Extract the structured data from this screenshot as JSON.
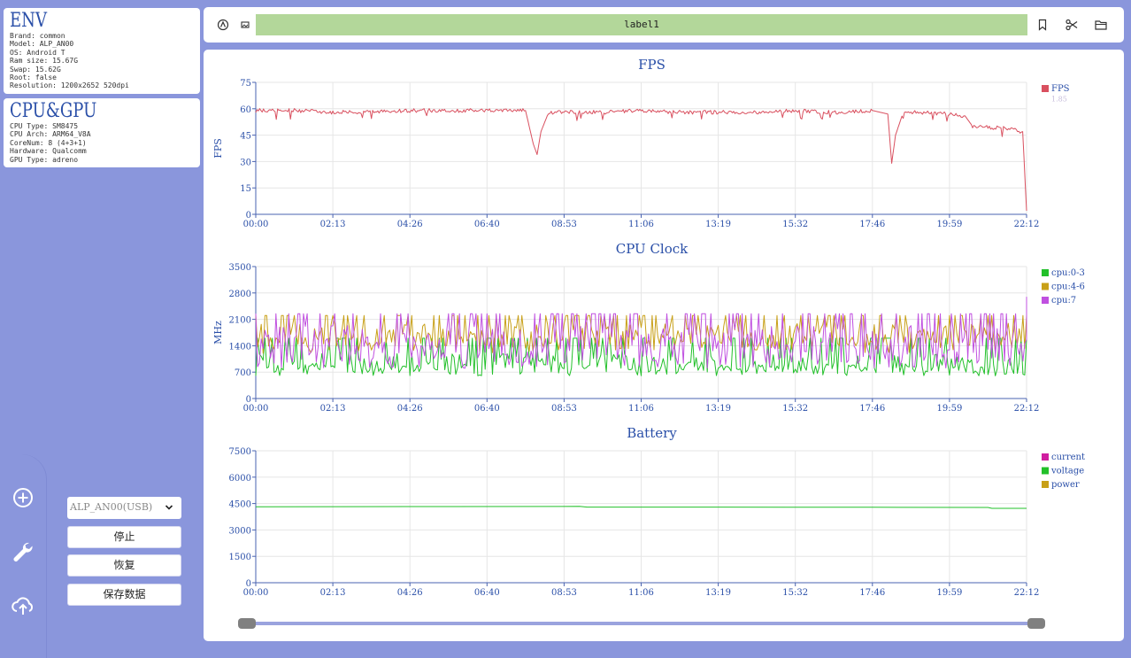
{
  "env": {
    "title": "ENV",
    "lines": [
      "Brand: common",
      "Model: ALP_AN00",
      "OS: Android T",
      "Ram size: 15.67G",
      "Swap: 15.62G",
      "Root: false",
      "Resolution: 1200x2652 520dpi"
    ]
  },
  "cpu_gpu": {
    "title": "CPU&GPU",
    "lines": [
      "CPU Type: SM8475",
      "CPU Arch: ARM64_V8A",
      "CoreNum: 8 (4+3+1)",
      "Hardware: Qualcomm",
      "GPU Type: adreno"
    ]
  },
  "sidebar": {
    "device": "ALP_AN00(USB)",
    "buttons": {
      "stop": "停止",
      "resume": "恢复",
      "save": "保存数据"
    },
    "dock_icons": [
      "add-circle-icon",
      "wrench-icon",
      "cloud-upload-icon"
    ]
  },
  "toolbar": {
    "label": "label1",
    "left_icons": [
      "record-icon",
      "screenshot-icon"
    ],
    "right_icons": [
      "bookmark-icon",
      "cut-icon",
      "folder-icon"
    ],
    "label_bg": "#b3d79a"
  },
  "timeline": {
    "start": 0.0,
    "end": 1.0
  },
  "chart_data": [
    {
      "type": "line",
      "title": "FPS",
      "ylabel": "FPS",
      "ylim": [
        0,
        75
      ],
      "yticks": [
        0,
        15,
        30,
        45,
        60,
        75
      ],
      "xticks": [
        "00:00",
        "02:13",
        "04:26",
        "06:40",
        "08:53",
        "11:06",
        "13:19",
        "15:32",
        "17:46",
        "19:59",
        "22:12"
      ],
      "grid": true,
      "legend_position": "right",
      "series": [
        {
          "name": "FPS",
          "color": "#d9505f",
          "x": [
            0.0,
            0.05,
            0.1,
            0.15,
            0.2,
            0.25,
            0.3,
            0.35,
            0.36,
            0.365,
            0.37,
            0.38,
            0.4,
            0.45,
            0.5,
            0.55,
            0.6,
            0.65,
            0.7,
            0.75,
            0.8,
            0.82,
            0.825,
            0.83,
            0.84,
            0.86,
            0.9,
            0.92,
            0.93,
            0.97,
            0.995,
            1.0
          ],
          "y": [
            59,
            59,
            58,
            58,
            59,
            59,
            59,
            59,
            40,
            34,
            47,
            58,
            58,
            58,
            59,
            58,
            58,
            58,
            59,
            58,
            59,
            57,
            29,
            45,
            58,
            58,
            57,
            56,
            50,
            49,
            47,
            2
          ]
        },
        {
          "name": "1.85",
          "color": "#c8bedc",
          "x": [],
          "y": []
        }
      ]
    },
    {
      "type": "line",
      "title": "CPU Clock",
      "ylabel": "MHz",
      "ylim": [
        0,
        3500
      ],
      "yticks": [
        0,
        700,
        1400,
        2100,
        2800,
        3500
      ],
      "xticks": [
        "00:00",
        "02:13",
        "04:26",
        "06:40",
        "08:53",
        "11:06",
        "13:19",
        "15:32",
        "17:46",
        "19:59",
        "22:12"
      ],
      "grid": true,
      "legend_position": "right",
      "series": [
        {
          "name": "cpu:0-3",
          "color": "#22c02a",
          "range": [
            600,
            1600
          ],
          "base": 900
        },
        {
          "name": "cpu:4-6",
          "color": "#c8a018",
          "range": [
            1200,
            2200
          ],
          "base": 1700
        },
        {
          "name": "cpu:7",
          "color": "#c050e0",
          "range": [
            800,
            2250
          ],
          "base": 1500
        }
      ]
    },
    {
      "type": "line",
      "title": "Battery",
      "ylabel": "",
      "ylim": [
        0,
        7500
      ],
      "yticks": [
        0,
        1500,
        3000,
        4500,
        6000,
        7500
      ],
      "xticks": [
        "00:00",
        "02:13",
        "04:26",
        "06:40",
        "08:53",
        "11:06",
        "13:19",
        "15:32",
        "17:46",
        "19:59",
        "22:12"
      ],
      "grid": true,
      "legend_position": "right",
      "series": [
        {
          "name": "current",
          "color": "#d01ea0",
          "x": [],
          "y": []
        },
        {
          "name": "voltage",
          "color": "#22c02a",
          "x": [
            0.0,
            0.2,
            0.42,
            0.43,
            0.6,
            0.8,
            0.95,
            0.955,
            1.0
          ],
          "y": [
            4320,
            4330,
            4340,
            4300,
            4300,
            4290,
            4280,
            4230,
            4230
          ]
        },
        {
          "name": "power",
          "color": "#c8a018",
          "x": [],
          "y": []
        }
      ]
    }
  ]
}
